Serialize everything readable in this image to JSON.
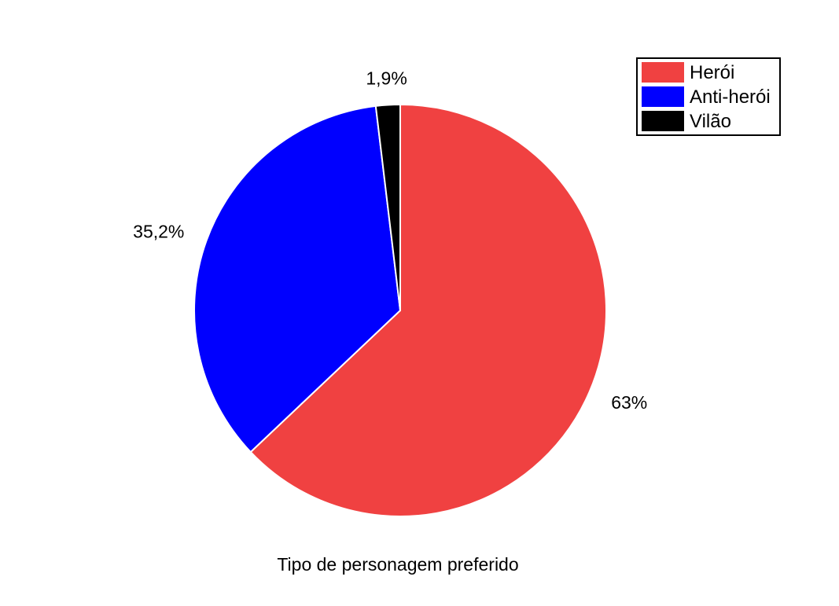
{
  "chart_data": {
    "type": "pie",
    "title": "",
    "xlabel": "Tipo de personagem preferido",
    "ylabel": "",
    "legend_position": "top-right",
    "slices": [
      {
        "name": "Herói",
        "value": 63.0,
        "label": "63%",
        "color": "#F04141"
      },
      {
        "name": "Anti-herói",
        "value": 35.2,
        "label": "35,2%",
        "color": "#0000FF"
      },
      {
        "name": "Vilão",
        "value": 1.9,
        "label": "1,9%",
        "color": "#000000"
      }
    ]
  }
}
